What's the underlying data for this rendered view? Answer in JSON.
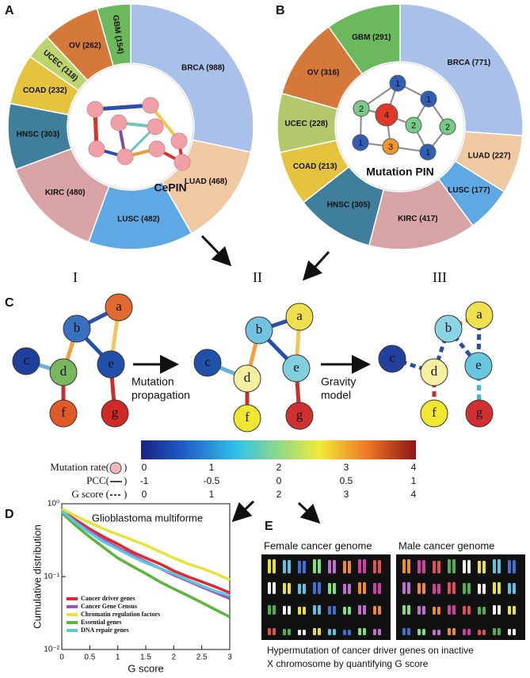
{
  "panel_letters": [
    "A",
    "B",
    "C",
    "D",
    "E"
  ],
  "chart_data": [
    {
      "type": "donut",
      "center_label": "CePIN",
      "values": [
        988,
        468,
        482,
        480,
        303,
        232,
        118,
        262,
        154
      ],
      "value_labels": [
        "BRCA (988)",
        "LUAD (468)",
        "LUSC (482)",
        "KIRC (480)",
        "HNSC (303)",
        "COAD (232)",
        "UCEC (118)",
        "OV (262)",
        "GBM (154)"
      ],
      "colors": [
        "#a9c1e8",
        "#efc9a1",
        "#5ea9e3",
        "#d7a3a5",
        "#3f7f9b",
        "#e6c33f",
        "#bcd36e",
        "#d5793a",
        "#6cb85d"
      ]
    },
    {
      "type": "donut",
      "center_label": "Mutation PIN",
      "values": [
        771,
        227,
        177,
        417,
        305,
        213,
        228,
        316,
        291
      ],
      "value_labels": [
        "BRCA (771)",
        "LUAD (227)",
        "LUSC (177)",
        "KIRC (417)",
        "HNSC (305)",
        "COAD (213)",
        "UCEC (228)",
        "OV (316)",
        "GBM (291)"
      ],
      "colors": [
        "#a9c1e8",
        "#efc9a1",
        "#5ea9e3",
        "#d7a3a5",
        "#3f7f9b",
        "#e6c33f",
        "#b3c86a",
        "#d5793a",
        "#6cb85d"
      ]
    },
    {
      "type": "line",
      "title": "Glioblastoma multiforme",
      "xlabel": "G score",
      "ylabel": "Cumulative distribution",
      "log_y": true,
      "legend": "lower left",
      "x": [
        0,
        0.25,
        0.5,
        0.75,
        1,
        1.25,
        1.5,
        1.75,
        2,
        2.25,
        2.5,
        2.75,
        3
      ],
      "xlim": [
        0,
        3
      ],
      "xticks": [
        0,
        0.5,
        1,
        1.5,
        2,
        2.5,
        3
      ],
      "ylim": [
        0.01,
        1
      ],
      "yticks": [
        {
          "value": 0.01,
          "label": "10⁻²"
        },
        {
          "value": 0.1,
          "label": "10⁻¹"
        },
        {
          "value": 1,
          "label": "10⁰"
        }
      ],
      "series": [
        {
          "name": "Cancer driver genes",
          "color": "#e3262c",
          "values": [
            0.8,
            0.6,
            0.45,
            0.35,
            0.28,
            0.22,
            0.18,
            0.15,
            0.12,
            0.1,
            0.085,
            0.072,
            0.06
          ]
        },
        {
          "name": "Cancer Gene Census",
          "color": "#a155b9",
          "values": [
            0.8,
            0.57,
            0.42,
            0.32,
            0.25,
            0.2,
            0.16,
            0.13,
            0.105,
            0.087,
            0.072,
            0.06,
            0.05
          ]
        },
        {
          "name": "Chromatin regulation factors",
          "color": "#e6e23a",
          "values": [
            0.85,
            0.68,
            0.55,
            0.45,
            0.38,
            0.32,
            0.27,
            0.22,
            0.18,
            0.15,
            0.13,
            0.11,
            0.09
          ]
        },
        {
          "name": "Essential genes",
          "color": "#5bb53e",
          "values": [
            0.75,
            0.5,
            0.35,
            0.25,
            0.18,
            0.14,
            0.11,
            0.085,
            0.068,
            0.055,
            0.044,
            0.035,
            0.028
          ]
        },
        {
          "name": "DNA repair genes",
          "color": "#5bc6dc",
          "values": [
            0.8,
            0.55,
            0.4,
            0.3,
            0.24,
            0.19,
            0.155,
            0.13,
            0.11,
            0.09,
            0.075,
            0.063,
            0.055
          ]
        }
      ]
    }
  ],
  "mutation_pin_nodes": [
    1,
    1,
    2,
    4,
    2,
    2,
    1,
    3,
    1
  ],
  "network": {
    "stages": [
      "I",
      "II",
      "III"
    ],
    "nodes": [
      "a",
      "b",
      "c",
      "d",
      "e",
      "f",
      "g"
    ],
    "steps": [
      [
        "Mutation",
        "propagation"
      ],
      [
        "Gravity",
        "model"
      ]
    ]
  },
  "colorbar": {
    "rows": [
      {
        "label": "Mutation rate(",
        "end": ")",
        "ticks": [
          0,
          1,
          2,
          3,
          4
        ]
      },
      {
        "label": "PCC(",
        "end": ")",
        "ticks": [
          -1,
          -0.5,
          0,
          0.5,
          1
        ]
      },
      {
        "label": "G score (",
        "end": ")",
        "ticks": [
          0,
          1,
          2,
          3,
          4
        ]
      }
    ]
  },
  "karyotype": {
    "titles": [
      "Female cancer genome",
      "Male cancer genome"
    ],
    "caption": [
      "Hypermutation of cancer driver genes on inactive",
      "X chromosome by quantifying G score"
    ]
  }
}
